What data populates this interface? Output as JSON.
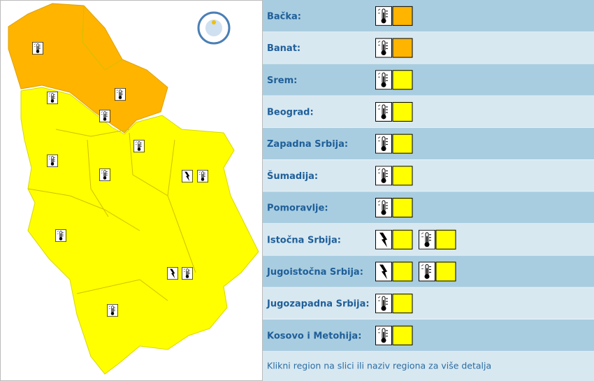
{
  "regions": [
    {
      "name": "Bačka:",
      "warnings": [
        {
          "icon": "heat",
          "color": "#ffb400"
        }
      ]
    },
    {
      "name": "Banat:",
      "warnings": [
        {
          "icon": "heat",
          "color": "#ffb400"
        }
      ]
    },
    {
      "name": "Srem:",
      "warnings": [
        {
          "icon": "heat",
          "color": "#ffff00"
        }
      ]
    },
    {
      "name": "Beograd:",
      "warnings": [
        {
          "icon": "heat",
          "color": "#ffff00"
        }
      ]
    },
    {
      "name": "Zapadna Srbija:",
      "warnings": [
        {
          "icon": "heat",
          "color": "#ffff00"
        }
      ]
    },
    {
      "name": "Šumadija:",
      "warnings": [
        {
          "icon": "heat",
          "color": "#ffff00"
        }
      ]
    },
    {
      "name": "Pomoravlje:",
      "warnings": [
        {
          "icon": "heat",
          "color": "#ffff00"
        }
      ]
    },
    {
      "name": "Istočna Srbija:",
      "warnings": [
        {
          "icon": "storm",
          "color": "#ffff00"
        },
        {
          "icon": "heat",
          "color": "#ffff00"
        }
      ]
    },
    {
      "name": "Jugoistočna Srbija:",
      "warnings": [
        {
          "icon": "storm",
          "color": "#ffff00"
        },
        {
          "icon": "heat",
          "color": "#ffff00"
        }
      ]
    },
    {
      "name": "Jugozapadna Srbija:",
      "warnings": [
        {
          "icon": "heat",
          "color": "#ffff00"
        }
      ]
    },
    {
      "name": "Kosovo i Metohija:",
      "warnings": [
        {
          "icon": "heat",
          "color": "#ffff00"
        }
      ]
    }
  ],
  "footer": "Klikni region na slici ili naziv regiona za više detalja"
}
